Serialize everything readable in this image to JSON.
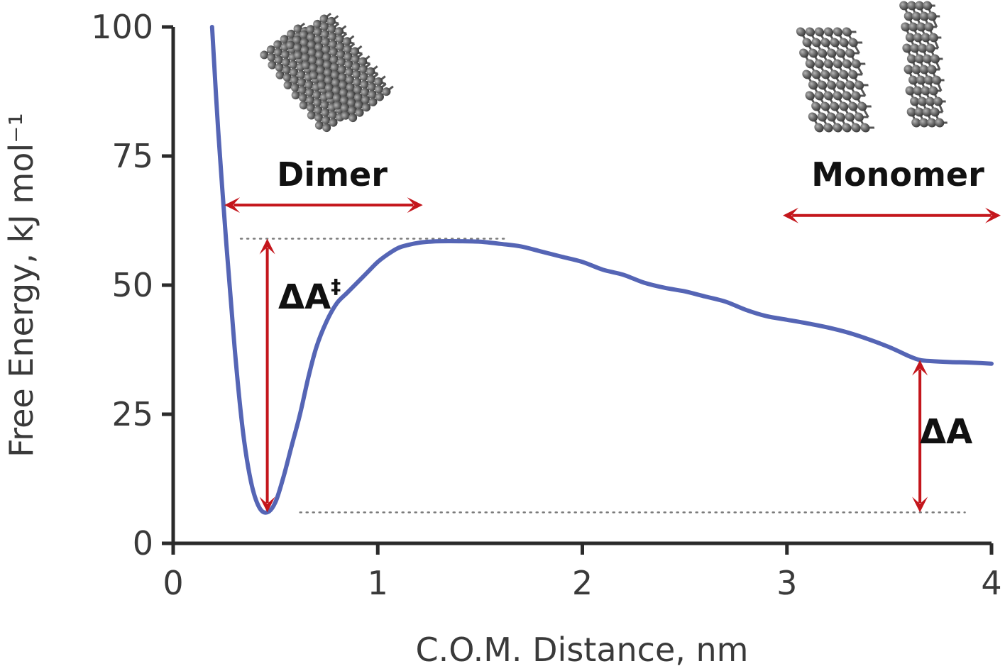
{
  "chart_data": {
    "type": "line",
    "xlabel": "C.O.M. Distance, nm",
    "ylabel": "Free Energy, kJ mol⁻¹",
    "xlim": [
      0,
      4
    ],
    "ylim": [
      0,
      100
    ],
    "x_ticks": [
      0,
      1,
      2,
      3,
      4
    ],
    "y_ticks": [
      0,
      25,
      50,
      75,
      100
    ],
    "grid": false,
    "series": [
      {
        "color": "#5565b5",
        "x": [
          0.19,
          0.22,
          0.26,
          0.3,
          0.34,
          0.38,
          0.42,
          0.46,
          0.5,
          0.54,
          0.58,
          0.62,
          0.66,
          0.7,
          0.75,
          0.8,
          0.85,
          0.9,
          0.95,
          1.0,
          1.05,
          1.1,
          1.15,
          1.2,
          1.25,
          1.3,
          1.4,
          1.5,
          1.6,
          1.7,
          1.8,
          1.9,
          2.0,
          2.1,
          2.2,
          2.3,
          2.4,
          2.5,
          2.6,
          2.7,
          2.8,
          2.9,
          3.0,
          3.1,
          3.2,
          3.3,
          3.4,
          3.5,
          3.6,
          3.65,
          3.7,
          3.8,
          3.9,
          4.0
        ],
        "y": [
          100,
          80,
          58,
          38,
          22,
          12,
          7,
          6,
          8,
          13,
          19,
          25,
          32,
          38,
          43,
          46.5,
          48.5,
          50.5,
          52.5,
          54.5,
          56,
          57.2,
          57.8,
          58.2,
          58.4,
          58.5,
          58.5,
          58.4,
          58,
          57.5,
          56.5,
          55.5,
          54.5,
          53,
          52,
          50.5,
          49.5,
          48.8,
          47.8,
          46.8,
          45.2,
          44,
          43.3,
          42.6,
          41.8,
          40.8,
          39.5,
          38,
          36.2,
          35.5,
          35.3,
          35.1,
          35.0,
          34.8
        ]
      }
    ],
    "reference_lines": [
      {
        "y": 59,
        "x_range": [
          0.33,
          1.62
        ]
      },
      {
        "y": 6,
        "x_range": [
          0.62,
          3.87
        ]
      }
    ],
    "annotations": {
      "dimer": {
        "label": "Dimer",
        "arrow_x": [
          0.25,
          1.22
        ],
        "arrow_y": 65.5
      },
      "monomer": {
        "label": "Monomer",
        "arrow_x": [
          2.98,
          4.05
        ],
        "arrow_y": 63.5
      },
      "barrier": {
        "label": "ΔA",
        "superscript": "‡",
        "arrow_x": 0.46,
        "arrow_y": [
          6,
          59
        ]
      },
      "delta": {
        "label": "ΔA",
        "arrow_x": 3.65,
        "arrow_y": [
          6,
          35.5
        ]
      }
    },
    "arrow_color": "#c4161c"
  }
}
